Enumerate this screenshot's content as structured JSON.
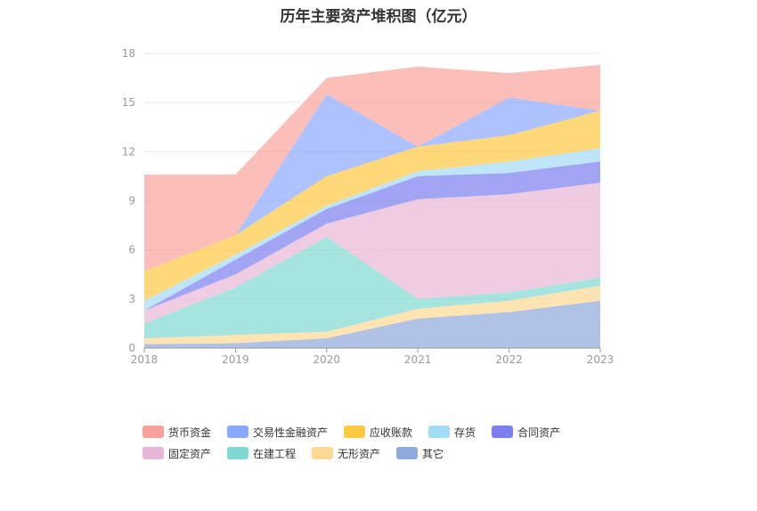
{
  "chart_data": {
    "type": "area",
    "stacked": true,
    "title": "历年主要资产堆积图（亿元）",
    "categories": [
      "2018",
      "2019",
      "2020",
      "2021",
      "2022",
      "2023"
    ],
    "ylim": [
      0,
      18
    ],
    "yticks": [
      "0",
      "3",
      "6",
      "9",
      "12",
      "15",
      "18"
    ],
    "grid": true,
    "legend_position": "bottom",
    "series": [
      {
        "name": "其它",
        "color": "#8faadc",
        "values": [
          0.25,
          0.3,
          0.6,
          1.8,
          2.2,
          2.9
        ]
      },
      {
        "name": "无形资产",
        "color": "#ffd993",
        "values": [
          0.35,
          0.5,
          0.4,
          0.6,
          0.7,
          0.9
        ]
      },
      {
        "name": "在建工程",
        "color": "#7fd8d2",
        "values": [
          0.9,
          2.9,
          5.8,
          0.6,
          0.5,
          0.5
        ]
      },
      {
        "name": "固定资产",
        "color": "#e8b6d6",
        "values": [
          0.8,
          0.8,
          0.8,
          6.1,
          6.0,
          5.8
        ]
      },
      {
        "name": "合同资产",
        "color": "#7b7ff0",
        "values": [
          0.0,
          0.9,
          0.9,
          1.4,
          1.3,
          1.3
        ]
      },
      {
        "name": "存货",
        "color": "#a3dcf5",
        "values": [
          0.6,
          0.3,
          0.2,
          0.3,
          0.7,
          0.8
        ]
      },
      {
        "name": "应收账款",
        "color": "#ffc940",
        "values": [
          1.8,
          1.2,
          1.8,
          1.5,
          1.6,
          2.3
        ]
      },
      {
        "name": "交易性金融资产",
        "color": "#8aa8ff",
        "values": [
          0.0,
          0.0,
          5.0,
          0.0,
          2.3,
          0.0
        ]
      },
      {
        "name": "货币资金",
        "color": "#f9a29b",
        "values": [
          5.9,
          3.7,
          1.0,
          4.9,
          1.5,
          2.8
        ]
      }
    ]
  },
  "legend": [
    {
      "label": "货币资金",
      "color": "#f9a29b"
    },
    {
      "label": "交易性金融资产",
      "color": "#8aa8ff"
    },
    {
      "label": "应收账款",
      "color": "#ffc940"
    },
    {
      "label": "存货",
      "color": "#a3dcf5"
    },
    {
      "label": "合同资产",
      "color": "#7b7ff0"
    },
    {
      "label": "固定资产",
      "color": "#e8b6d6"
    },
    {
      "label": "在建工程",
      "color": "#7fd8d2"
    },
    {
      "label": "无形资产",
      "color": "#ffd993"
    },
    {
      "label": "其它",
      "color": "#8faadc"
    }
  ]
}
